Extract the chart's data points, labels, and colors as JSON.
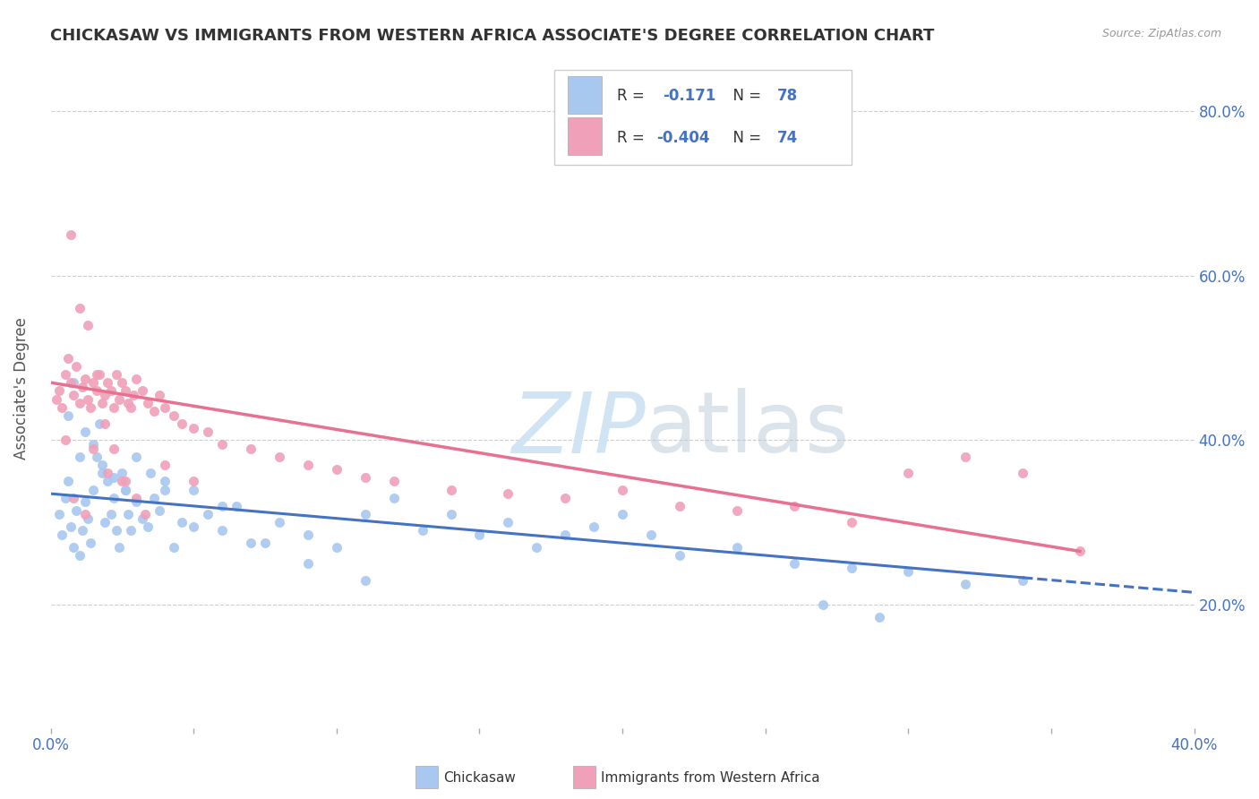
{
  "title": "CHICKASAW VS IMMIGRANTS FROM WESTERN AFRICA ASSOCIATE'S DEGREE CORRELATION CHART",
  "source": "Source: ZipAtlas.com",
  "ylabel": "Associate's Degree",
  "right_yticks": [
    "20.0%",
    "40.0%",
    "60.0%",
    "80.0%"
  ],
  "right_ytick_vals": [
    0.2,
    0.4,
    0.6,
    0.8
  ],
  "legend_label1": "Chickasaw",
  "legend_label2": "Immigrants from Western Africa",
  "r1": -0.171,
  "n1": 78,
  "r2": -0.404,
  "n2": 74,
  "color_blue": "#A8C8F0",
  "color_pink": "#F0A0B8",
  "color_trendline_blue": "#4472C4",
  "color_trendline_pink": "#E87090",
  "watermark_color": "#D0E4F4",
  "background_color": "#FFFFFF",
  "xmin": 0.0,
  "xmax": 0.4,
  "ymin": 0.05,
  "ymax": 0.875,
  "trendline_blue_x0": 0.0,
  "trendline_blue_x1": 0.4,
  "trendline_blue_y0": 0.335,
  "trendline_blue_y1": 0.215,
  "trendline_pink_x0": 0.0,
  "trendline_pink_x1": 0.36,
  "trendline_pink_y0": 0.47,
  "trendline_pink_y1": 0.265,
  "blue_x": [
    0.003,
    0.004,
    0.005,
    0.006,
    0.007,
    0.008,
    0.009,
    0.01,
    0.011,
    0.012,
    0.013,
    0.014,
    0.015,
    0.016,
    0.017,
    0.018,
    0.019,
    0.02,
    0.021,
    0.022,
    0.023,
    0.024,
    0.025,
    0.026,
    0.027,
    0.028,
    0.03,
    0.032,
    0.034,
    0.036,
    0.038,
    0.04,
    0.043,
    0.046,
    0.05,
    0.055,
    0.06,
    0.065,
    0.07,
    0.08,
    0.09,
    0.1,
    0.11,
    0.12,
    0.13,
    0.14,
    0.15,
    0.16,
    0.17,
    0.18,
    0.19,
    0.2,
    0.21,
    0.22,
    0.24,
    0.26,
    0.28,
    0.3,
    0.32,
    0.34,
    0.006,
    0.008,
    0.01,
    0.012,
    0.015,
    0.018,
    0.022,
    0.026,
    0.03,
    0.035,
    0.04,
    0.05,
    0.06,
    0.075,
    0.09,
    0.11,
    0.27,
    0.29
  ],
  "blue_y": [
    0.31,
    0.285,
    0.33,
    0.35,
    0.295,
    0.27,
    0.315,
    0.26,
    0.29,
    0.325,
    0.305,
    0.275,
    0.34,
    0.38,
    0.42,
    0.36,
    0.3,
    0.35,
    0.31,
    0.33,
    0.29,
    0.27,
    0.36,
    0.34,
    0.31,
    0.29,
    0.325,
    0.305,
    0.295,
    0.33,
    0.315,
    0.35,
    0.27,
    0.3,
    0.34,
    0.31,
    0.29,
    0.32,
    0.275,
    0.3,
    0.285,
    0.27,
    0.31,
    0.33,
    0.29,
    0.31,
    0.285,
    0.3,
    0.27,
    0.285,
    0.295,
    0.31,
    0.285,
    0.26,
    0.27,
    0.25,
    0.245,
    0.24,
    0.225,
    0.23,
    0.43,
    0.47,
    0.38,
    0.41,
    0.395,
    0.37,
    0.355,
    0.34,
    0.38,
    0.36,
    0.34,
    0.295,
    0.32,
    0.275,
    0.25,
    0.23,
    0.2,
    0.185
  ],
  "pink_x": [
    0.002,
    0.003,
    0.004,
    0.005,
    0.006,
    0.007,
    0.008,
    0.009,
    0.01,
    0.011,
    0.012,
    0.013,
    0.014,
    0.015,
    0.016,
    0.017,
    0.018,
    0.019,
    0.02,
    0.021,
    0.022,
    0.023,
    0.024,
    0.025,
    0.026,
    0.027,
    0.028,
    0.029,
    0.03,
    0.032,
    0.034,
    0.036,
    0.038,
    0.04,
    0.043,
    0.046,
    0.05,
    0.055,
    0.06,
    0.07,
    0.08,
    0.09,
    0.1,
    0.11,
    0.12,
    0.14,
    0.16,
    0.18,
    0.2,
    0.22,
    0.24,
    0.26,
    0.28,
    0.3,
    0.32,
    0.34,
    0.36,
    0.005,
    0.008,
    0.012,
    0.015,
    0.02,
    0.025,
    0.03,
    0.007,
    0.01,
    0.013,
    0.016,
    0.019,
    0.022,
    0.026,
    0.033,
    0.04,
    0.05
  ],
  "pink_y": [
    0.45,
    0.46,
    0.44,
    0.48,
    0.5,
    0.47,
    0.455,
    0.49,
    0.445,
    0.465,
    0.475,
    0.45,
    0.44,
    0.47,
    0.46,
    0.48,
    0.445,
    0.455,
    0.47,
    0.46,
    0.44,
    0.48,
    0.45,
    0.47,
    0.46,
    0.445,
    0.44,
    0.455,
    0.475,
    0.46,
    0.445,
    0.435,
    0.455,
    0.44,
    0.43,
    0.42,
    0.415,
    0.41,
    0.395,
    0.39,
    0.38,
    0.37,
    0.365,
    0.355,
    0.35,
    0.34,
    0.335,
    0.33,
    0.34,
    0.32,
    0.315,
    0.32,
    0.3,
    0.36,
    0.38,
    0.36,
    0.265,
    0.4,
    0.33,
    0.31,
    0.39,
    0.36,
    0.35,
    0.33,
    0.65,
    0.56,
    0.54,
    0.48,
    0.42,
    0.39,
    0.35,
    0.31,
    0.37,
    0.35
  ]
}
